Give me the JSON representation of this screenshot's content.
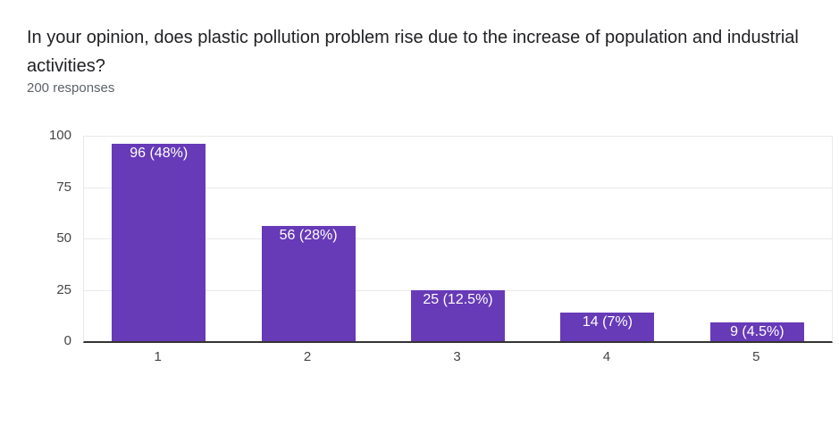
{
  "header": {
    "title": "In your opinion, does plastic pollution problem rise due to the increase of population and industrial activities?",
    "responses_count": "200 responses"
  },
  "chart_data": {
    "type": "bar",
    "title": "In your opinion, does plastic pollution problem rise due to the increase of population and industrial activities?",
    "subtitle": "200 responses",
    "categories": [
      "1",
      "2",
      "3",
      "4",
      "5"
    ],
    "values": [
      96,
      56,
      25,
      14,
      9
    ],
    "bar_labels": [
      "96 (48%)",
      "56 (28%)",
      "25 (12.5%)",
      "14 (7%)",
      "9 (4.5%)"
    ],
    "xlabel": "",
    "ylabel": "",
    "ylim": [
      0,
      100
    ],
    "y_ticks": [
      0,
      25,
      50,
      75,
      100
    ],
    "grid": true,
    "legend": "none",
    "bar_color": "#673ab7",
    "bar_label_color": "#ffffff"
  },
  "colors": {
    "accent": "#673ab7",
    "axis_line": "#333333",
    "gridline": "#e9e9e9",
    "tick_text": "#444444",
    "title_text": "#202124",
    "subtitle_text": "#5f6368",
    "background": "#ffffff"
  }
}
